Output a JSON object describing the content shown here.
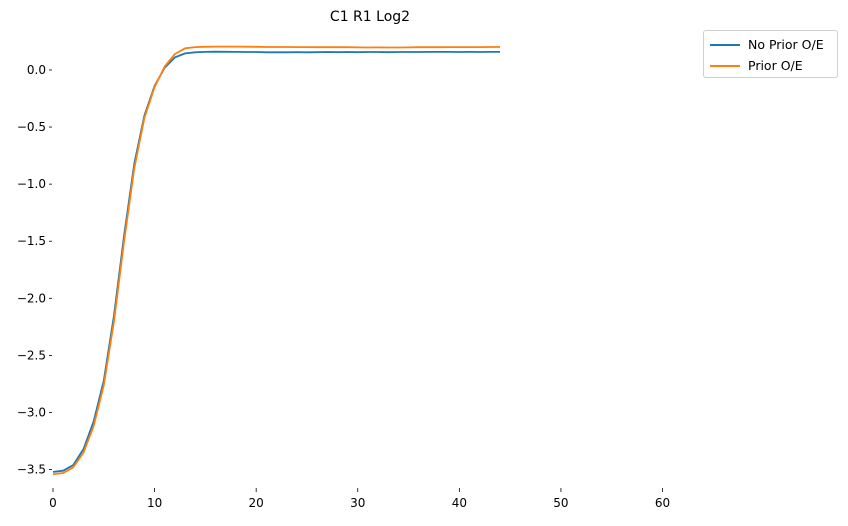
{
  "chart_data": {
    "type": "line",
    "title": "C1 R1 Log2",
    "xlabel": "",
    "ylabel": "",
    "xlim": [
      0,
      63
    ],
    "ylim": [
      -3.6,
      0.35
    ],
    "xticks": [
      0,
      10,
      20,
      30,
      40,
      50,
      60
    ],
    "yticks": [
      -3.5,
      -3.0,
      -2.5,
      -2.0,
      -1.5,
      -1.0,
      -0.5,
      0.0
    ],
    "xtick_labels": [
      "0",
      "10",
      "20",
      "30",
      "40",
      "50",
      "60"
    ],
    "ytick_labels": [
      "−3.5",
      "−3.0",
      "−2.5",
      "−2.0",
      "−1.5",
      "−1.0",
      "−0.5",
      "0.0"
    ],
    "grid": false,
    "legend_position": "top-right outside",
    "x": [
      0,
      1,
      2,
      3,
      4,
      5,
      6,
      7,
      8,
      9,
      10,
      11,
      12,
      13,
      14,
      15,
      16,
      17,
      18,
      19,
      20,
      21,
      22,
      23,
      24,
      25,
      26,
      27,
      28,
      29,
      30,
      31,
      32,
      33,
      34,
      35,
      36,
      37,
      38,
      39,
      40,
      41,
      42,
      43,
      44
    ],
    "series": [
      {
        "name": "No Prior O/E",
        "color": "#1f77b4",
        "values": [
          -3.52,
          -3.51,
          -3.46,
          -3.32,
          -3.08,
          -2.72,
          -2.15,
          -1.45,
          -0.82,
          -0.4,
          -0.14,
          0.02,
          0.11,
          0.145,
          0.155,
          0.158,
          0.16,
          0.159,
          0.158,
          0.157,
          0.157,
          0.155,
          0.155,
          0.155,
          0.156,
          0.155,
          0.156,
          0.157,
          0.156,
          0.157,
          0.156,
          0.157,
          0.157,
          0.156,
          0.157,
          0.157,
          0.157,
          0.158,
          0.158,
          0.158,
          0.157,
          0.158,
          0.157,
          0.158,
          0.158
        ]
      },
      {
        "name": "Prior O/E",
        "color": "#ff7f0e",
        "values": [
          -3.54,
          -3.53,
          -3.48,
          -3.35,
          -3.12,
          -2.76,
          -2.2,
          -1.5,
          -0.86,
          -0.42,
          -0.15,
          0.03,
          0.14,
          0.19,
          0.2,
          0.203,
          0.205,
          0.205,
          0.205,
          0.204,
          0.203,
          0.201,
          0.201,
          0.201,
          0.2,
          0.2,
          0.199,
          0.199,
          0.199,
          0.199,
          0.198,
          0.197,
          0.198,
          0.197,
          0.197,
          0.198,
          0.199,
          0.199,
          0.199,
          0.2,
          0.2,
          0.2,
          0.2,
          0.201,
          0.201
        ]
      }
    ]
  }
}
